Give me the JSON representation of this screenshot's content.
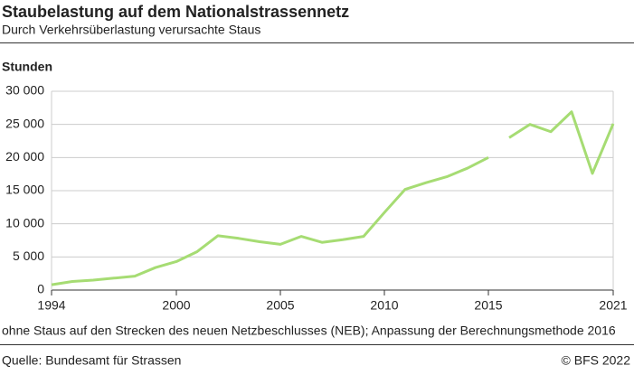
{
  "chart_data": {
    "type": "line",
    "title": "Staubelastung auf dem Nationalstrassennetz",
    "subtitle": "Durch Verkehrsüberlastung verursachte Staus",
    "y_label": "Stunden",
    "note": "ohne Staus auf den Strecken des neuen Netzbeschlusses (NEB); Anpassung der Berechnungsmethode 2016",
    "source": "Quelle: Bundesamt für Strassen",
    "copyright": "© BFS 2022",
    "x": [
      1994,
      1995,
      1996,
      1997,
      1998,
      1999,
      2000,
      2001,
      2002,
      2003,
      2004,
      2005,
      2006,
      2007,
      2008,
      2009,
      2010,
      2011,
      2012,
      2013,
      2014,
      2015,
      2016,
      2017,
      2018,
      2019,
      2020,
      2021
    ],
    "series": [
      {
        "color": "#a6dc73",
        "values": [
          800,
          1300,
          1500,
          1800,
          2100,
          3400,
          4300,
          5800,
          8200,
          7800,
          7300,
          6900,
          8100,
          7200,
          7600,
          8100,
          11700,
          15200,
          16200,
          17100,
          18400,
          20000,
          null,
          null,
          null,
          null,
          null,
          null
        ]
      },
      {
        "color": "#a6dc73",
        "values": [
          null,
          null,
          null,
          null,
          null,
          null,
          null,
          null,
          null,
          null,
          null,
          null,
          null,
          null,
          null,
          null,
          null,
          null,
          null,
          null,
          null,
          null,
          23000,
          25000,
          23900,
          26900,
          17600,
          25100
        ]
      }
    ],
    "xlim": [
      1994,
      2021
    ],
    "xticks": [
      1994,
      2000,
      2005,
      2010,
      2015,
      2021
    ],
    "ylim": [
      0,
      30000
    ],
    "yticks": [
      0,
      {
        "value": 5000,
        "label": "5 000"
      },
      {
        "value": 10000,
        "label": "10 000"
      },
      {
        "value": 15000,
        "label": "15 000"
      },
      {
        "value": 20000,
        "label": "20 000"
      },
      {
        "value": 25000,
        "label": "25 000"
      },
      {
        "value": 30000,
        "label": "30 000"
      }
    ],
    "grid": true
  }
}
